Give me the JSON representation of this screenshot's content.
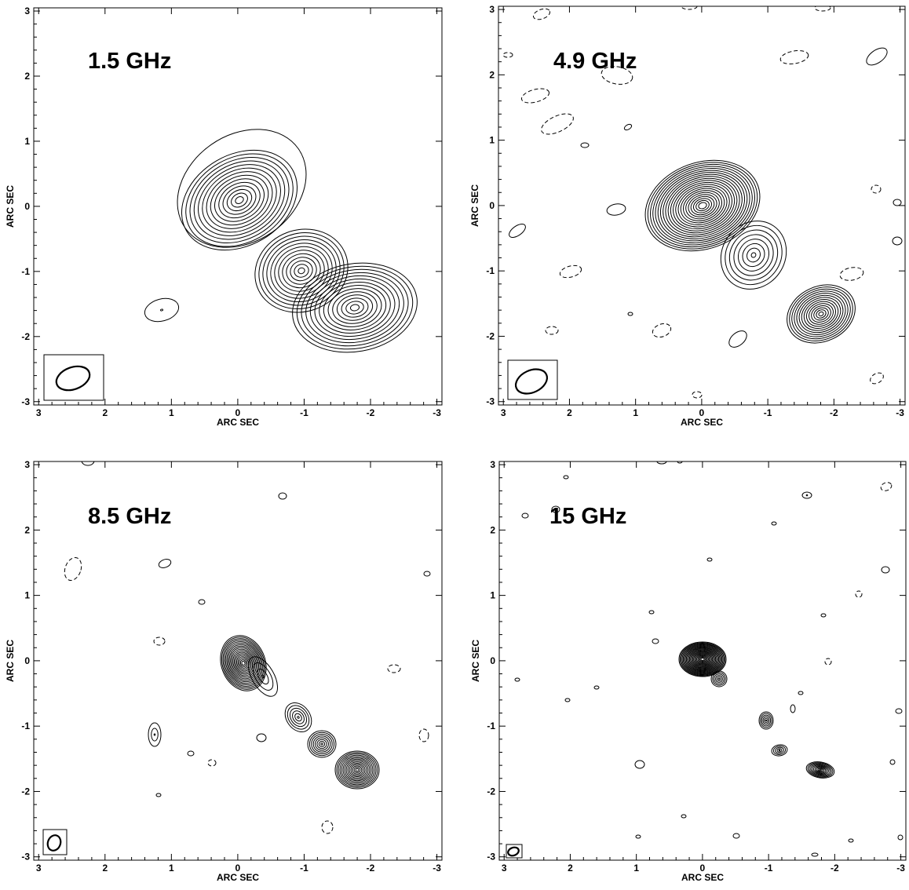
{
  "panels": [
    {
      "id": "p1",
      "label": "1.5 GHz"
    },
    {
      "id": "p2",
      "label": "4.9 GHz"
    },
    {
      "id": "p3",
      "label": "8.5 GHz"
    },
    {
      "id": "p4",
      "label": "15 GHz"
    }
  ],
  "axes": {
    "xlabel": "ARC SEC",
    "ylabel": "ARC SEC",
    "x_ticks": [
      "3",
      "2",
      "1",
      "0",
      "-1",
      "-2",
      "-3"
    ],
    "y_ticks": [
      "3",
      "2",
      "1",
      "0",
      "-1",
      "-2",
      "-3"
    ]
  },
  "colors": {
    "ink": "#000000",
    "background": "#ffffff"
  }
}
